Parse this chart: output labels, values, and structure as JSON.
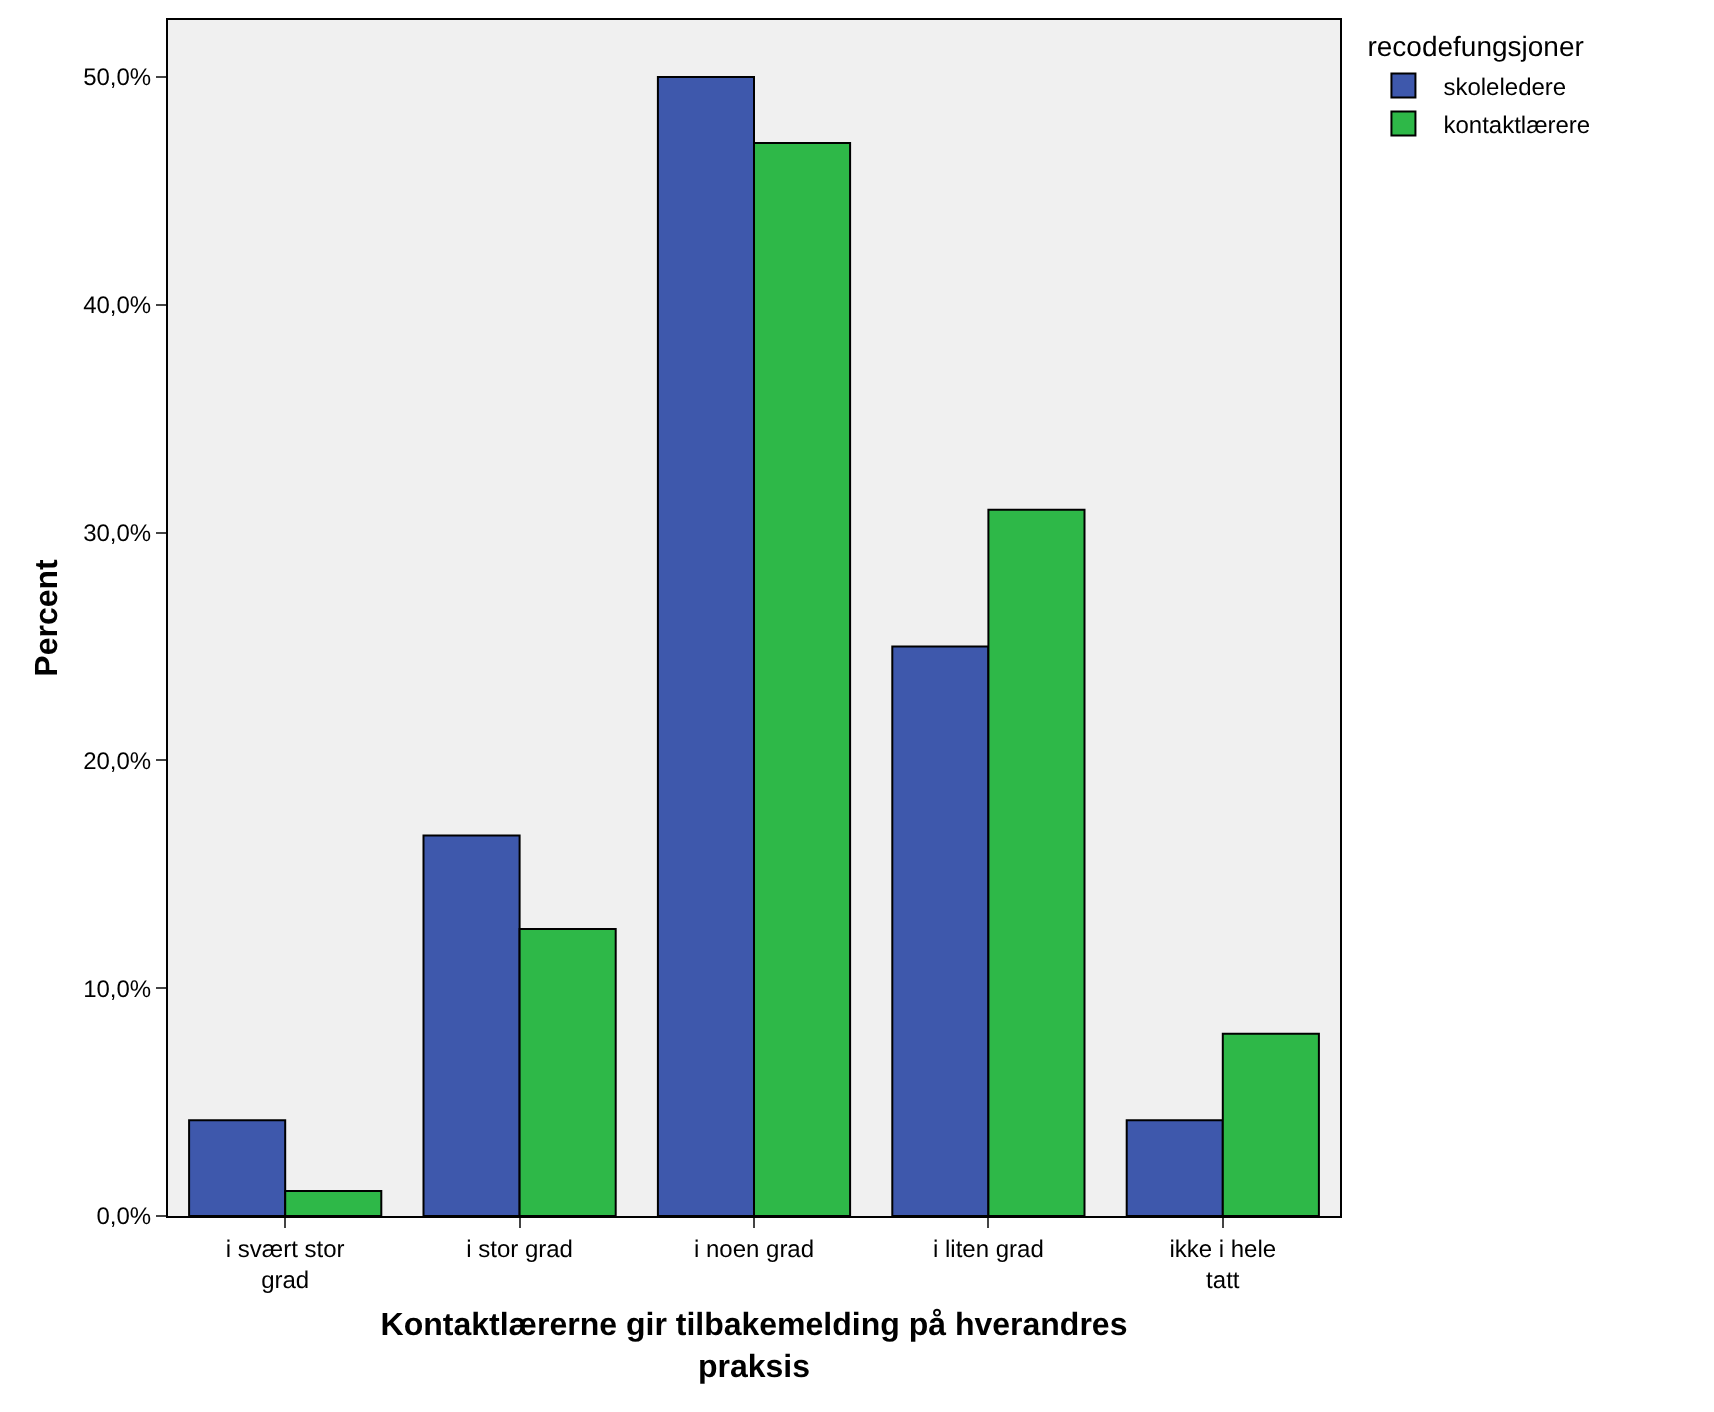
{
  "chart_data": {
    "type": "bar",
    "xlabel": "Kontaktlærerne gir tilbakemelding på hverandres praksis",
    "ylabel": "Percent",
    "legend_title": "recodefungsjoner",
    "categories": [
      "i svært stor grad",
      "i stor grad",
      "i noen grad",
      "i liten grad",
      "ikke i hele tatt"
    ],
    "series": [
      {
        "name": "skoleledere",
        "color": "#3e58ac",
        "values": [
          4.2,
          16.7,
          50.0,
          25.0,
          4.2
        ]
      },
      {
        "name": "kontaktlærere",
        "color": "#2eb848",
        "values": [
          1.1,
          12.6,
          47.1,
          31.0,
          8.0
        ]
      }
    ],
    "ylim": [
      0,
      52.5
    ],
    "yticks": [
      {
        "value": 0,
        "label": "0,0%"
      },
      {
        "value": 10,
        "label": "10,0%"
      },
      {
        "value": 20,
        "label": "20,0%"
      },
      {
        "value": 30,
        "label": "30,0%"
      },
      {
        "value": 40,
        "label": "40,0%"
      },
      {
        "value": 50,
        "label": "50,0%"
      }
    ],
    "grid": false,
    "legend": "top right"
  }
}
